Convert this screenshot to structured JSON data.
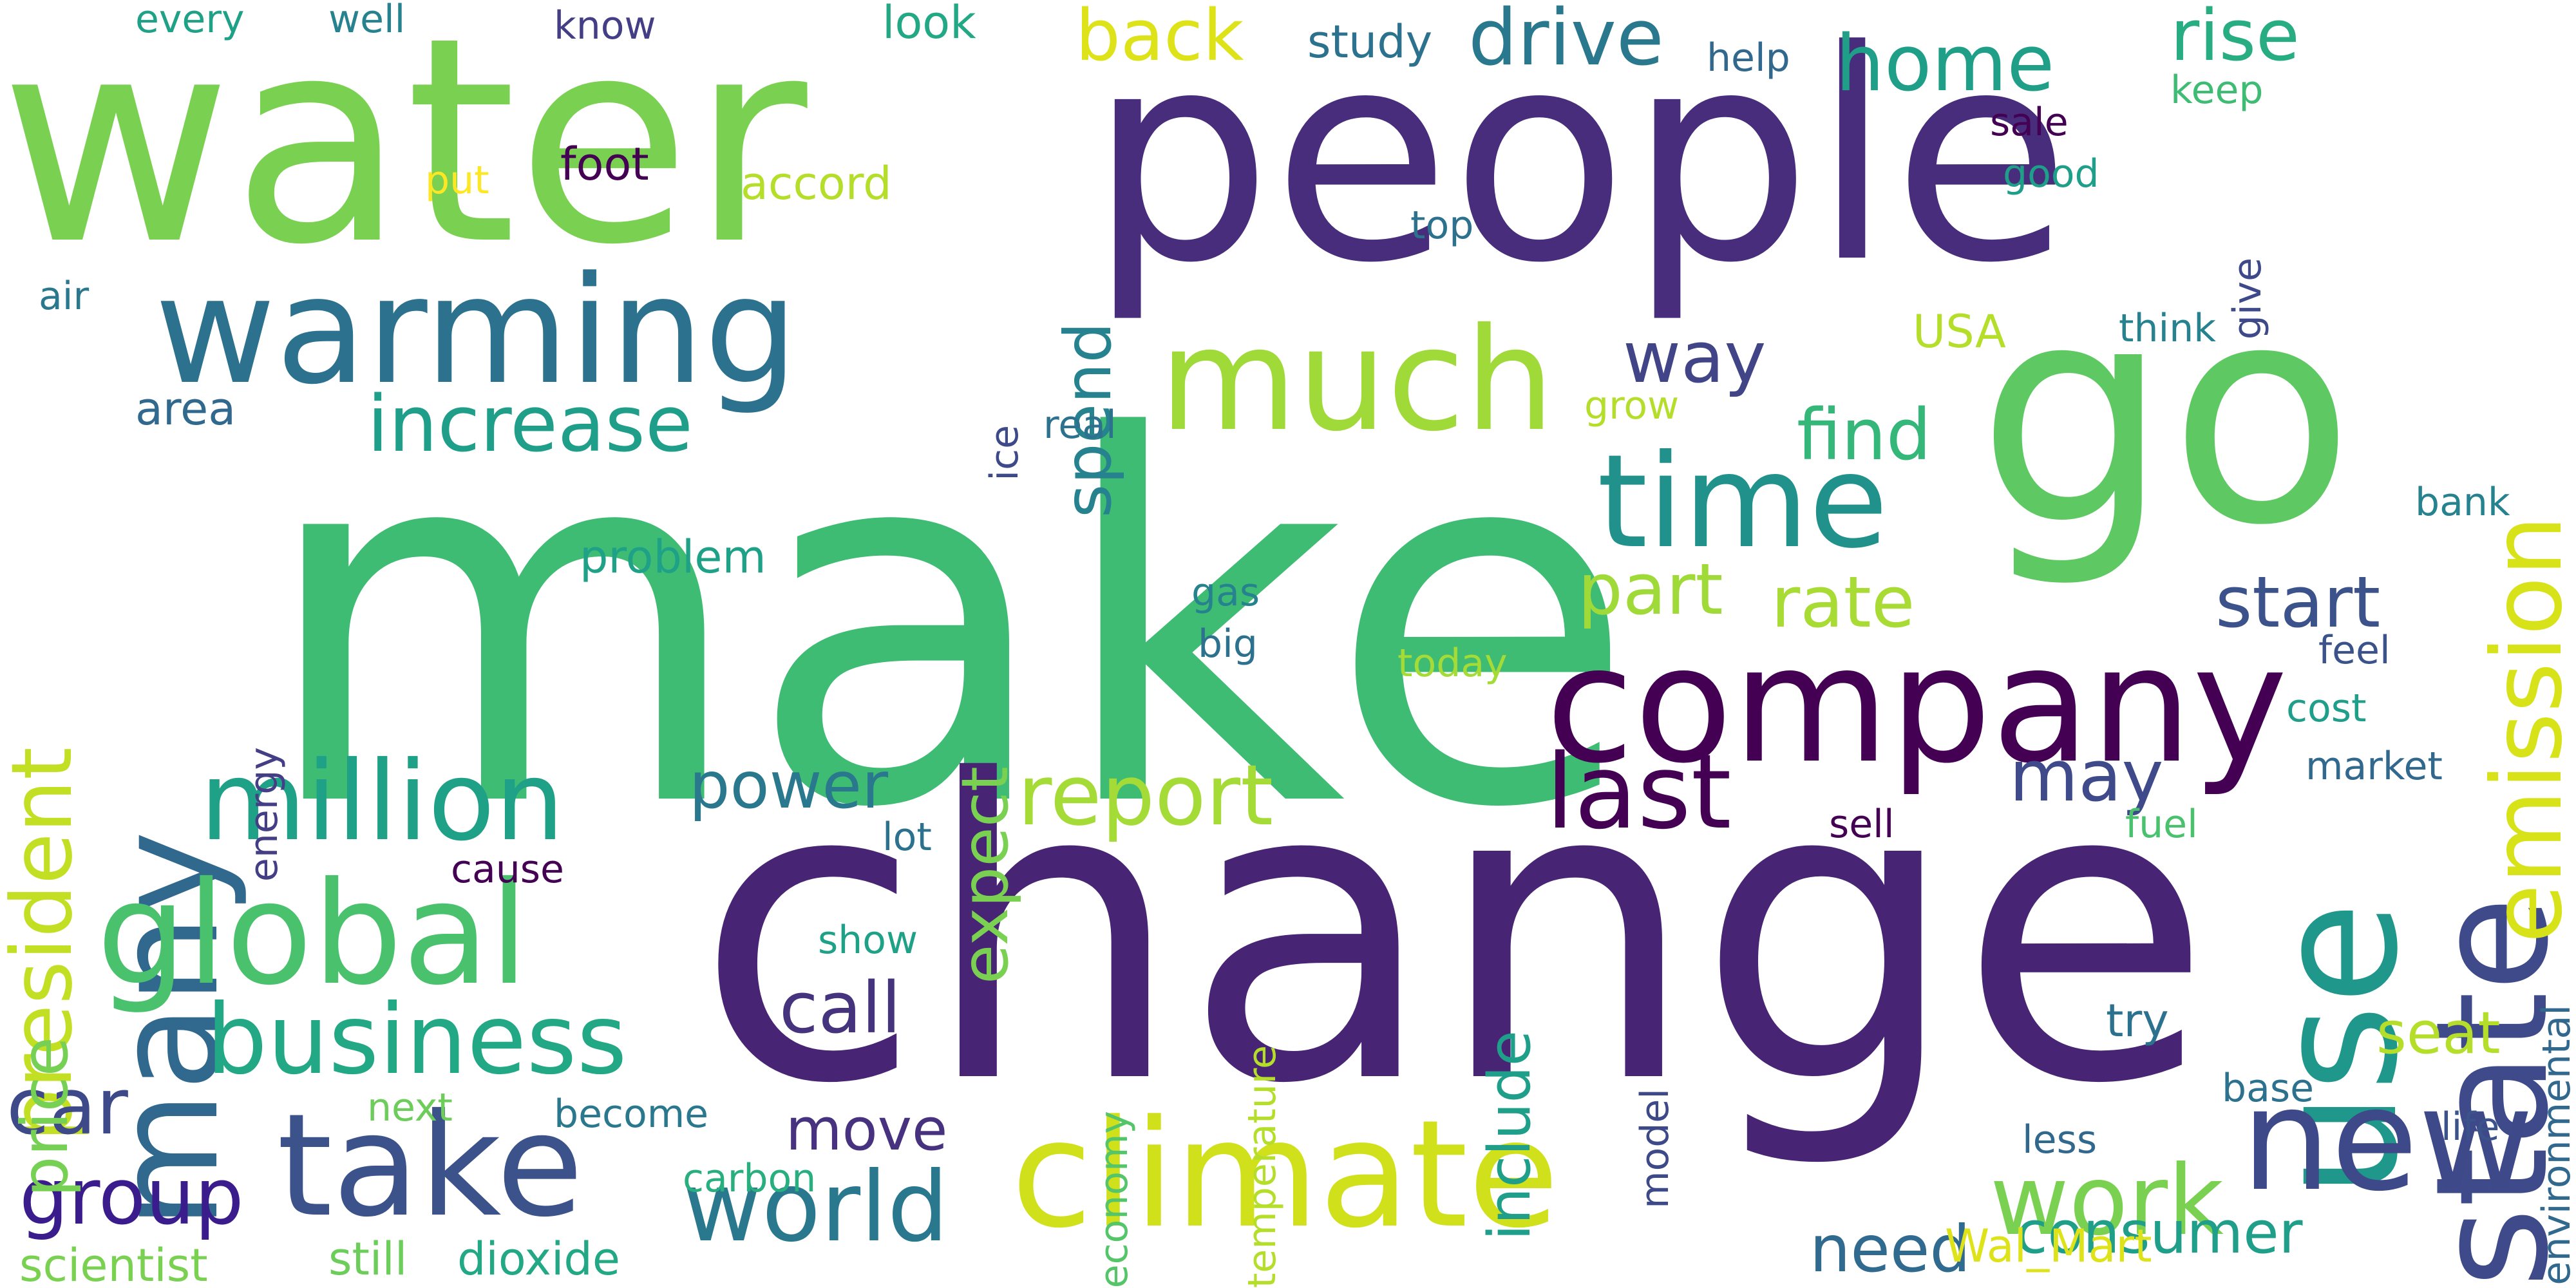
{
  "words": [
    {
      "text": "make",
      "color": "#3fbc73"
    },
    {
      "text": "change",
      "color": "#482475"
    },
    {
      "text": "people",
      "color": "#472d7b"
    },
    {
      "text": "water",
      "color": "#7ad151"
    },
    {
      "text": "go",
      "color": "#5ec962"
    },
    {
      "text": "company",
      "color": "#440154"
    },
    {
      "text": "use",
      "color": "#1f988b"
    },
    {
      "text": "warming",
      "color": "#2c728e"
    },
    {
      "text": "much",
      "color": "#a0da39"
    },
    {
      "text": "many",
      "color": "#31688e"
    },
    {
      "text": "climate",
      "color": "#d0e11c"
    },
    {
      "text": "global",
      "color": "#4ac16d"
    },
    {
      "text": "take",
      "color": "#3b528b"
    },
    {
      "text": "state",
      "color": "#3e4a89"
    },
    {
      "text": "new",
      "color": "#3e4989"
    },
    {
      "text": "time",
      "color": "#21918c"
    },
    {
      "text": "million",
      "color": "#1fa187"
    },
    {
      "text": "business",
      "color": "#22a884"
    },
    {
      "text": "last",
      "color": "#440154"
    },
    {
      "text": "emission",
      "color": "#d8e219"
    },
    {
      "text": "world",
      "color": "#2a788e"
    },
    {
      "text": "work",
      "color": "#7ad151"
    },
    {
      "text": "increase",
      "color": "#1f9e89"
    },
    {
      "text": "president",
      "color": "#c2df23"
    },
    {
      "text": "report",
      "color": "#a5db36"
    },
    {
      "text": "car",
      "color": "#3e4989"
    },
    {
      "text": "group",
      "color": "#3b1c8c"
    },
    {
      "text": "home",
      "color": "#1f9f88"
    },
    {
      "text": "drive",
      "color": "#2a788e"
    },
    {
      "text": "way",
      "color": "#414487"
    },
    {
      "text": "rise",
      "color": "#27ad81"
    },
    {
      "text": "back",
      "color": "#dde318"
    },
    {
      "text": "start",
      "color": "#3b528b"
    },
    {
      "text": "rate",
      "color": "#a8db34"
    },
    {
      "text": "part",
      "color": "#a0da39"
    },
    {
      "text": "find",
      "color": "#35b779"
    },
    {
      "text": "call",
      "color": "#46337e"
    },
    {
      "text": "power",
      "color": "#2a788e"
    },
    {
      "text": "may",
      "color": "#3e4a89"
    },
    {
      "text": "expect",
      "color": "#7ad151"
    },
    {
      "text": "include",
      "color": "#1f9e89"
    },
    {
      "text": "spend",
      "color": "#26828e"
    },
    {
      "text": "price",
      "color": "#75d054"
    },
    {
      "text": "need",
      "color": "#306a8e"
    },
    {
      "text": "consumer",
      "color": "#1f9e89"
    },
    {
      "text": "move",
      "color": "#46327e"
    },
    {
      "text": "seat",
      "color": "#b5de2b"
    },
    {
      "text": "try",
      "color": "#2c728e"
    },
    {
      "text": "base",
      "color": "#2c728e"
    },
    {
      "text": "life",
      "color": "#3b528b"
    },
    {
      "text": "less",
      "color": "#31688e"
    },
    {
      "text": "Wal_Mart",
      "color": "#dde318"
    },
    {
      "text": "still",
      "color": "#6ccd5a"
    },
    {
      "text": "dioxide",
      "color": "#22a884"
    },
    {
      "text": "scientist",
      "color": "#7ad151"
    },
    {
      "text": "carbon",
      "color": "#29af7f"
    },
    {
      "text": "become",
      "color": "#2a788e"
    },
    {
      "text": "next",
      "color": "#6ccd5a"
    },
    {
      "text": "show",
      "color": "#1fa187"
    },
    {
      "text": "economy",
      "color": "#54c568"
    },
    {
      "text": "temperature",
      "color": "#b5de2b"
    },
    {
      "text": "model",
      "color": "#3e4989"
    },
    {
      "text": "environmental",
      "color": "#31688e"
    },
    {
      "text": "fuel",
      "color": "#4ac16d"
    },
    {
      "text": "sell",
      "color": "#440154"
    },
    {
      "text": "lot",
      "color": "#2c728e"
    },
    {
      "text": "cause",
      "color": "#440154"
    },
    {
      "text": "energy",
      "color": "#433e85"
    },
    {
      "text": "problem",
      "color": "#1fa187"
    },
    {
      "text": "area",
      "color": "#31688e"
    },
    {
      "text": "air",
      "color": "#2a788e"
    },
    {
      "text": "put",
      "color": "#fde725"
    },
    {
      "text": "every",
      "color": "#1fa187"
    },
    {
      "text": "well",
      "color": "#26828e"
    },
    {
      "text": "know",
      "color": "#433e85"
    },
    {
      "text": "foot",
      "color": "#440154"
    },
    {
      "text": "look",
      "color": "#22a884"
    },
    {
      "text": "accord",
      "color": "#b5de2b"
    },
    {
      "text": "study",
      "color": "#2c728e"
    },
    {
      "text": "help",
      "color": "#31688e"
    },
    {
      "text": "keep",
      "color": "#3fbc73"
    },
    {
      "text": "sale",
      "color": "#440154"
    },
    {
      "text": "good",
      "color": "#1f9e89"
    },
    {
      "text": "give",
      "color": "#3e4989"
    },
    {
      "text": "top",
      "color": "#2c728e"
    },
    {
      "text": "think",
      "color": "#26828e"
    },
    {
      "text": "USA",
      "color": "#b5de2b"
    },
    {
      "text": "ice",
      "color": "#3e4989"
    },
    {
      "text": "real",
      "color": "#2c728e"
    },
    {
      "text": "grow",
      "color": "#b5de2b"
    },
    {
      "text": "gas",
      "color": "#26828e"
    },
    {
      "text": "big",
      "color": "#2c728e"
    },
    {
      "text": "today",
      "color": "#a5db36"
    },
    {
      "text": "bank",
      "color": "#26828e"
    },
    {
      "text": "feel",
      "color": "#3b528b"
    },
    {
      "text": "cost",
      "color": "#1f9e89"
    },
    {
      "text": "market",
      "color": "#31688e"
    }
  ]
}
